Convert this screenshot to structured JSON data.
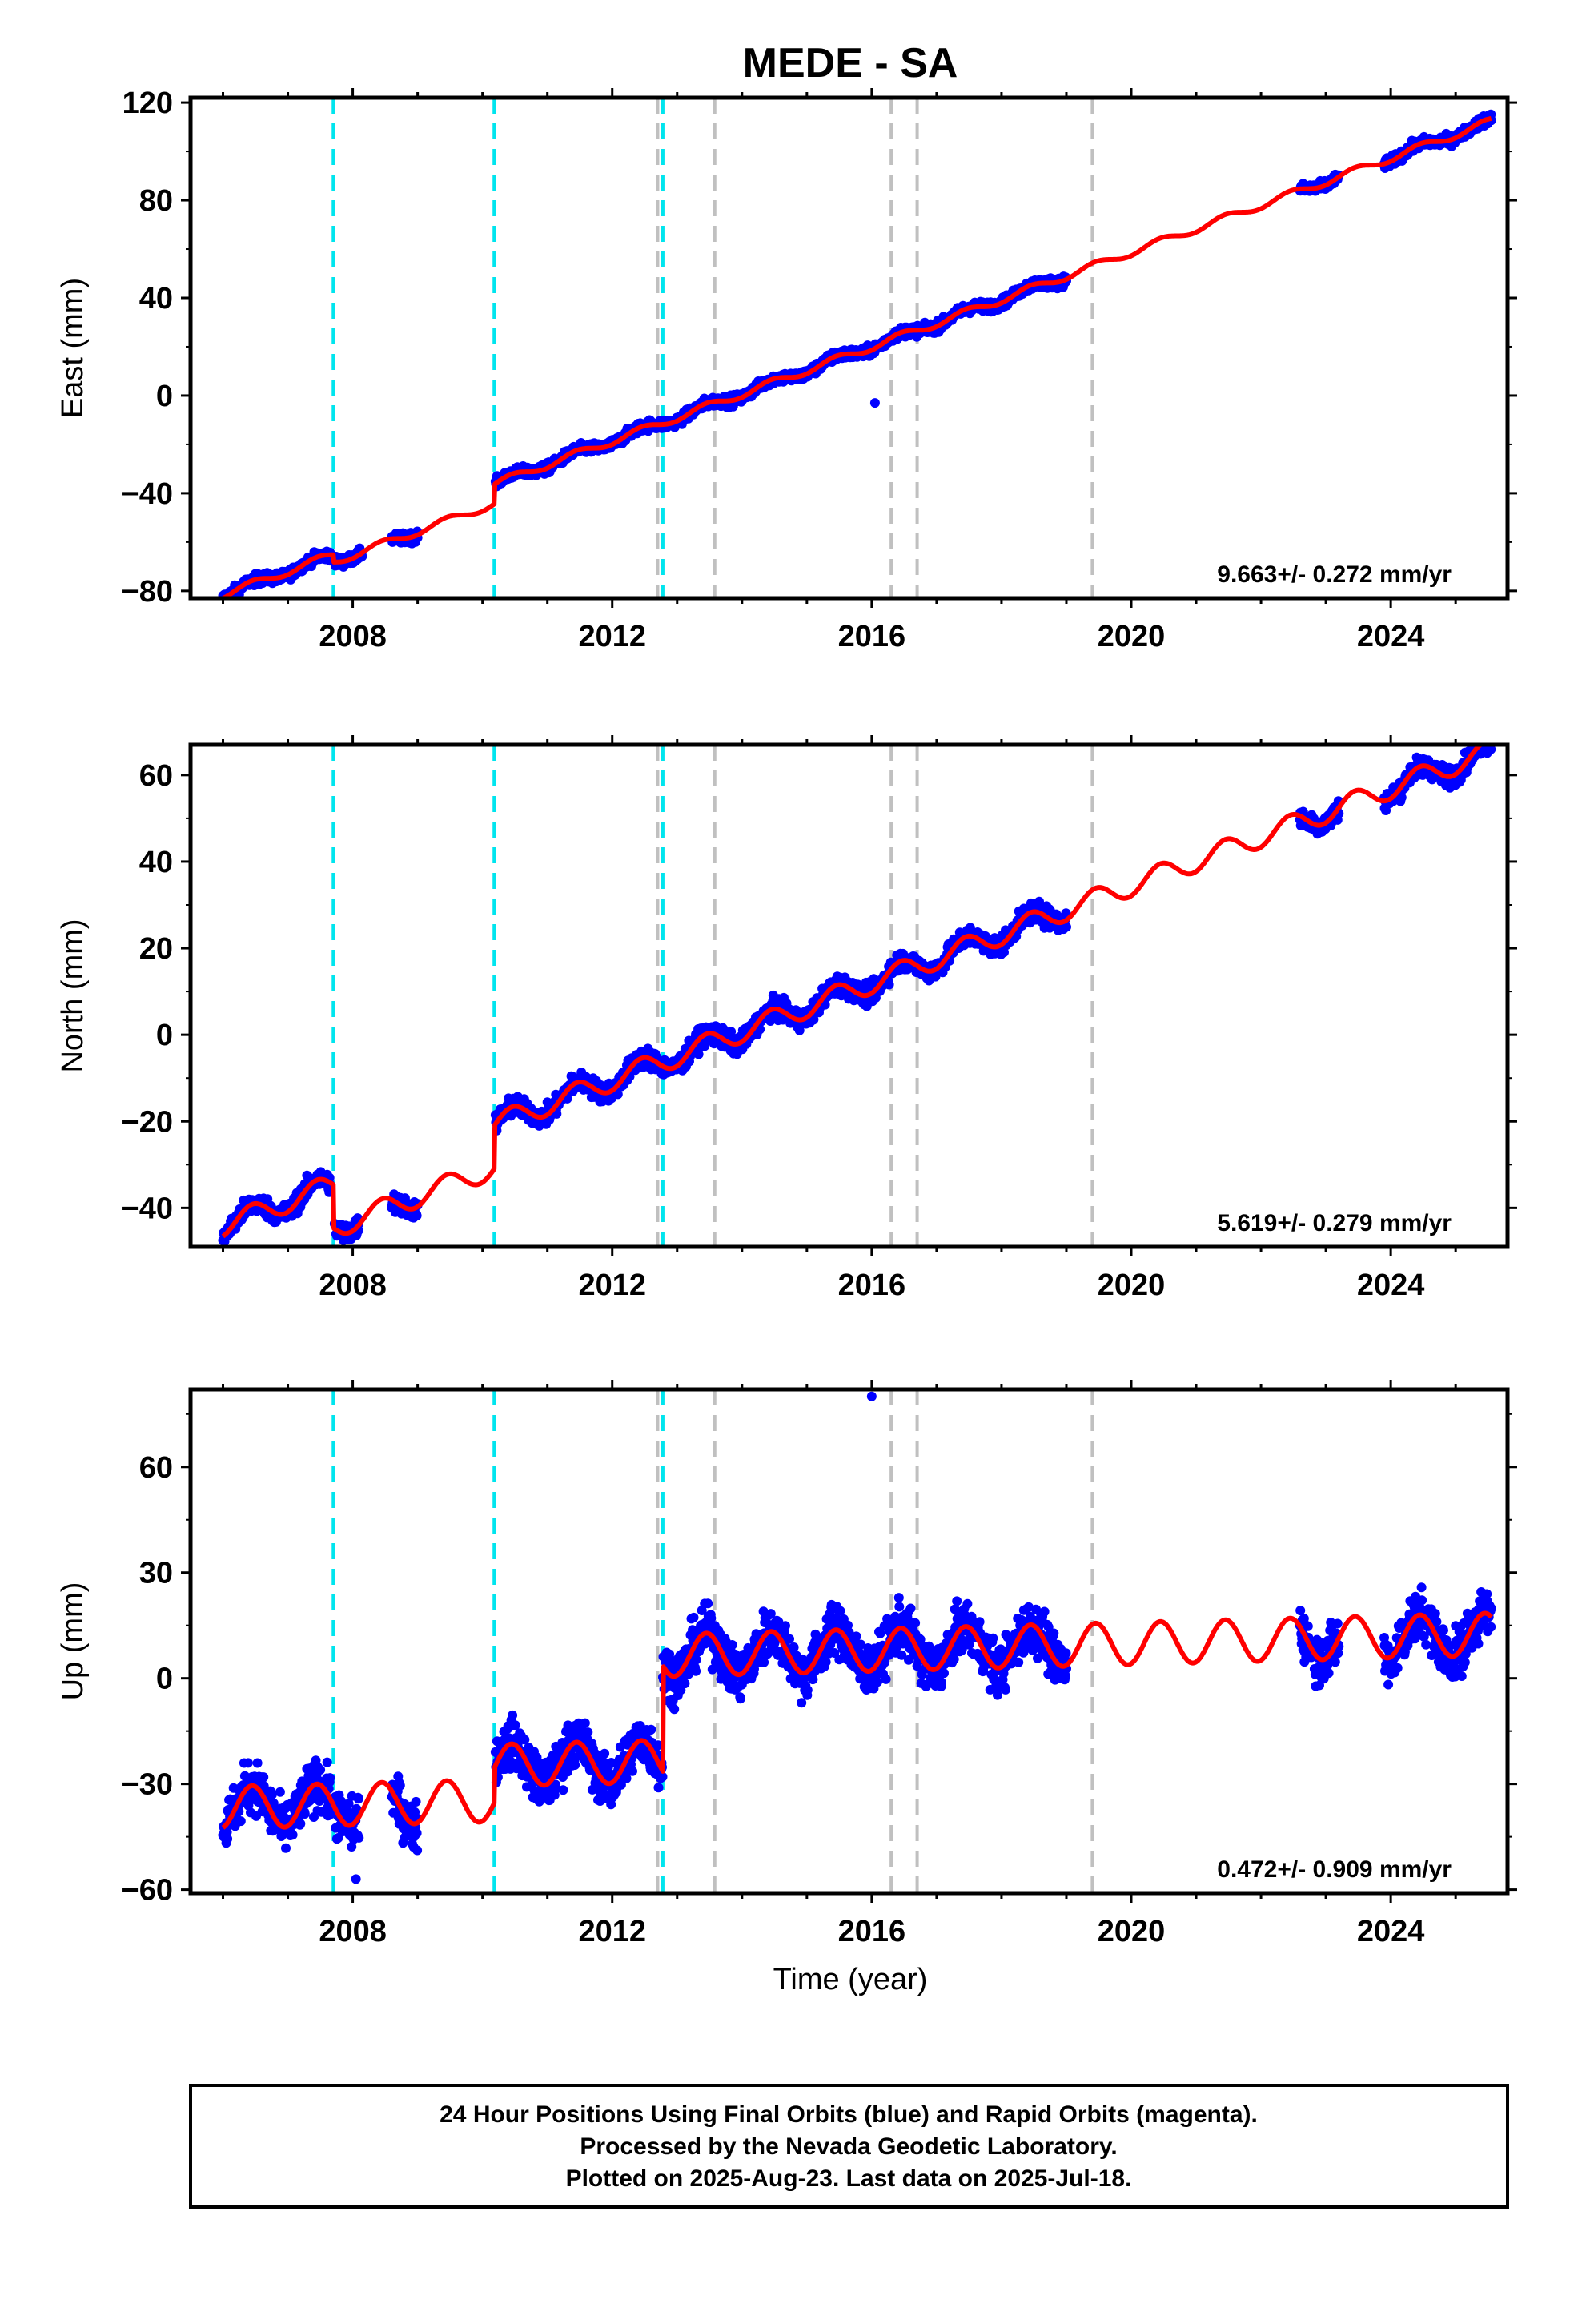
{
  "title": "MEDE - SA",
  "xlabel": "Time (year)",
  "footer": [
    "24 Hour Positions Using Final Orbits (blue) and Rapid Orbits (magenta).",
    "Processed by the Nevada Geodetic Laboratory.",
    "Plotted on 2025-Aug-23. Last data on 2025-Jul-18."
  ],
  "colors": {
    "data_points": "#0000ff",
    "model_fit": "#ff0000",
    "equipment_change": "#00e5ee",
    "other_event": "#c0c0c0"
  },
  "chart_data": [
    {
      "type": "scatter",
      "panel": "east",
      "ylabel": "East (mm)",
      "rate_label": "9.663+/- 0.272 mm/yr",
      "xlim": [
        2005.5,
        2025.8
      ],
      "ylim": [
        -83,
        122
      ],
      "xticks": [
        2008,
        2012,
        2016,
        2020,
        2024
      ],
      "yticks": [
        -80,
        -40,
        0,
        40,
        80,
        120
      ],
      "velocity_mm_per_yr": 9.663,
      "value_at_2016": 20,
      "offsets": [
        {
          "x": 2007.7,
          "dy": -3
        },
        {
          "x": 2010.18,
          "dy": 8
        }
      ],
      "annual_amplitude": 1.5,
      "noise": 1.5,
      "data_segments": [
        [
          2006.0,
          2007.65
        ],
        [
          2007.72,
          2008.15
        ],
        [
          2008.6,
          2009.0
        ],
        [
          2010.2,
          2013.6
        ],
        [
          2013.6,
          2019.0
        ],
        [
          2022.6,
          2023.2
        ],
        [
          2023.9,
          2025.55
        ]
      ],
      "outliers": [
        [
          2016.05,
          -3
        ]
      ],
      "gap_model": true
    },
    {
      "type": "scatter",
      "panel": "north",
      "ylabel": "North (mm)",
      "rate_label": "5.619+/- 0.279 mm/yr",
      "xlim": [
        2005.5,
        2025.8
      ],
      "ylim": [
        -49,
        67
      ],
      "xticks": [
        2008,
        2012,
        2016,
        2020,
        2024
      ],
      "yticks": [
        -40,
        -20,
        0,
        20,
        40,
        60
      ],
      "velocity_mm_per_yr": 5.619,
      "value_at_2016": 12,
      "offsets": [
        {
          "x": 2007.7,
          "dy": -10
        },
        {
          "x": 2010.18,
          "dy": 10
        }
      ],
      "annual_amplitude": 2.5,
      "noise": 1.6,
      "data_segments": [
        [
          2006.0,
          2007.65
        ],
        [
          2007.72,
          2008.1
        ],
        [
          2008.6,
          2009.0
        ],
        [
          2010.2,
          2013.6
        ],
        [
          2013.6,
          2019.0
        ],
        [
          2022.6,
          2023.2
        ],
        [
          2023.9,
          2025.55
        ]
      ],
      "outliers": [],
      "gap_model": true
    },
    {
      "type": "scatter",
      "panel": "up",
      "ylabel": "Up (mm)",
      "rate_label": "0.472+/- 0.909 mm/yr",
      "xlim": [
        2005.5,
        2025.8
      ],
      "ylim": [
        -61,
        82
      ],
      "xticks": [
        2008,
        2012,
        2016,
        2020,
        2024
      ],
      "yticks": [
        -60,
        -30,
        0,
        30,
        60
      ],
      "velocity_mm_per_yr": 0.472,
      "value_at_2016": 8,
      "offsets": [
        {
          "x": 2007.7,
          "dy": 0
        },
        {
          "x": 2010.18,
          "dy": 10
        },
        {
          "x": 2012.78,
          "dy": 30
        }
      ],
      "annual_amplitude": 6,
      "noise": 5,
      "data_segments": [
        [
          2006.0,
          2007.65
        ],
        [
          2007.72,
          2008.1
        ],
        [
          2008.6,
          2009.0
        ],
        [
          2010.2,
          2013.6
        ],
        [
          2013.6,
          2019.0
        ],
        [
          2022.6,
          2023.2
        ],
        [
          2023.9,
          2025.55
        ]
      ],
      "outliers": [
        [
          2016.0,
          80
        ],
        [
          2008.05,
          -57
        ]
      ],
      "gap_model": true
    }
  ],
  "event_lines": {
    "equipment_change": [
      2007.7,
      2010.18,
      2012.78
    ],
    "other_event": [
      2012.7,
      2013.58,
      2016.3,
      2016.7,
      2019.4
    ]
  }
}
